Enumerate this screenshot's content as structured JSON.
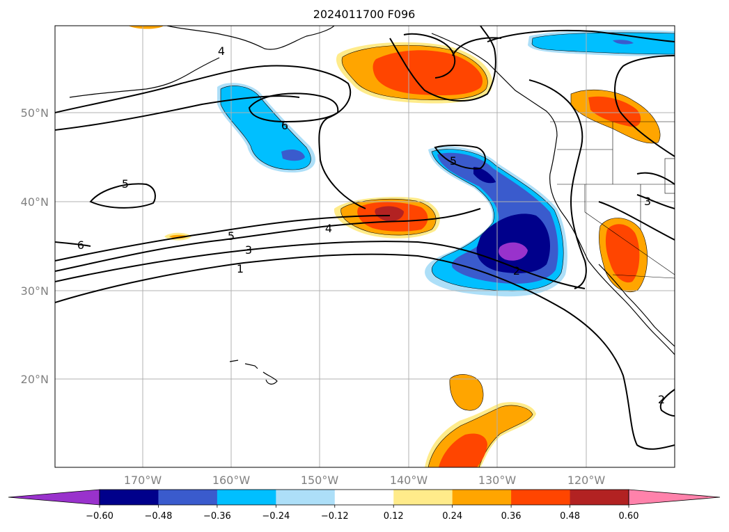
{
  "title": "2024011700 F096",
  "lat_labels": [
    "50°N",
    "40°N",
    "30°N",
    "20°N"
  ],
  "lon_labels": [
    "170°W",
    "160°W",
    "150°W",
    "140°W",
    "130°W",
    "120°W"
  ],
  "colorbar": {
    "labels": [
      "−0.60",
      "−0.48",
      "−0.36",
      "−0.24",
      "−0.12",
      "0.12",
      "0.24",
      "0.36",
      "0.48",
      "0.60"
    ],
    "colors": [
      "#9932CC",
      "#00008B",
      "#3A5BCD",
      "#00BFFF",
      "#ADDFF8",
      "#FFFFFF",
      "#FFEB8A",
      "#FFA500",
      "#FF4500",
      "#B22222",
      "#FF82AB"
    ]
  },
  "contour_labels": [
    "4",
    "6",
    "5",
    "5",
    "6",
    "5",
    "3",
    "1",
    "4",
    "2",
    "3",
    "2"
  ]
}
